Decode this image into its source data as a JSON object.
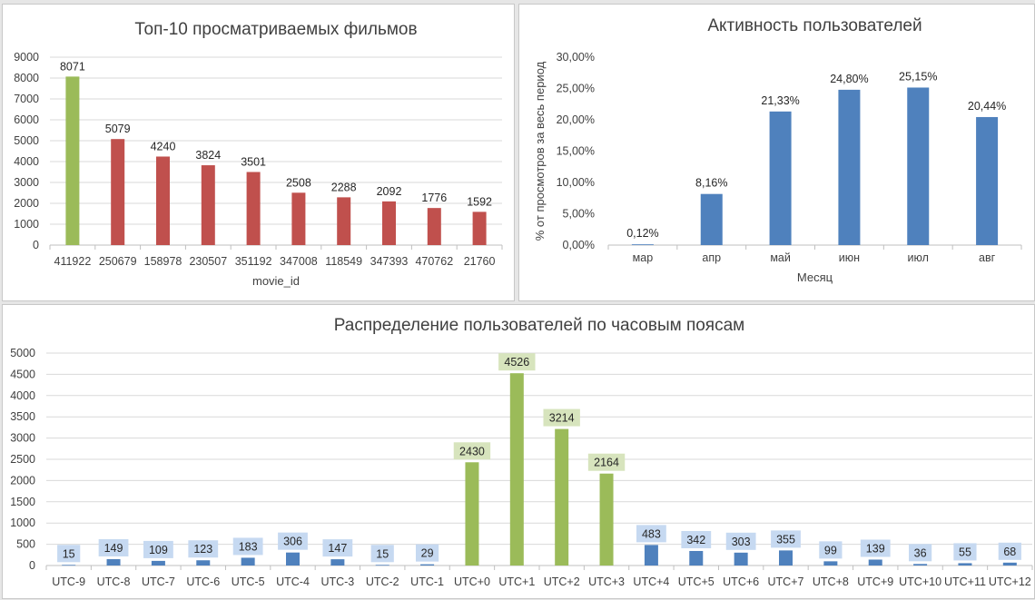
{
  "chart_data": [
    {
      "type": "bar",
      "title": "Топ-10 просматриваемых фильмов",
      "xlabel": "movie_id",
      "ylabel": "",
      "ylim": [
        0,
        9000
      ],
      "yticks": [
        "0",
        "1000",
        "2000",
        "3000",
        "4000",
        "5000",
        "6000",
        "7000",
        "8000",
        "9000"
      ],
      "categories": [
        "411922",
        "250679",
        "158978",
        "230507",
        "351192",
        "347008",
        "118549",
        "347393",
        "470762",
        "21760"
      ],
      "values": [
        8071,
        5079,
        4240,
        3824,
        3501,
        2508,
        2288,
        2092,
        1776,
        1592
      ],
      "data_labels": [
        "8071",
        "5079",
        "4240",
        "3824",
        "3501",
        "2508",
        "2288",
        "2092",
        "1776",
        "1592"
      ],
      "highlight_indices": [
        0
      ],
      "colors": {
        "default": "#c0504d",
        "highlight": "#9bbb59"
      },
      "grid": true,
      "legend": "none"
    },
    {
      "type": "bar",
      "title": "Активность пользователей",
      "xlabel": "Месяц",
      "ylabel": "%  от просмотров за весь период",
      "ylim": [
        0,
        30
      ],
      "yticks": [
        "0,00%",
        "5,00%",
        "10,00%",
        "15,00%",
        "20,00%",
        "25,00%",
        "30,00%"
      ],
      "categories": [
        "мар",
        "апр",
        "май",
        "июн",
        "июл",
        "авг"
      ],
      "values": [
        0.12,
        8.16,
        21.33,
        24.8,
        25.15,
        20.44
      ],
      "data_labels": [
        "0,12%",
        "8,16%",
        "21,33%",
        "24,80%",
        "25,15%",
        "20,44%"
      ],
      "highlight_indices": [],
      "colors": {
        "default": "#4f81bd",
        "highlight": "#4f81bd"
      },
      "grid": false,
      "legend": "none"
    },
    {
      "type": "bar",
      "title": "Распределение пользователей по часовым поясам",
      "xlabel": "",
      "ylabel": "",
      "ylim": [
        0,
        5000
      ],
      "yticks": [
        "0",
        "500",
        "1000",
        "1500",
        "2000",
        "2500",
        "3000",
        "3500",
        "4000",
        "4500",
        "5000"
      ],
      "categories": [
        "UTC-9",
        "UTC-8",
        "UTC-7",
        "UTC-6",
        "UTC-5",
        "UTC-4",
        "UTC-3",
        "UTC-2",
        "UTC-1",
        "UTC+0",
        "UTC+1",
        "UTC+2",
        "UTC+3",
        "UTC+4",
        "UTC+5",
        "UTC+6",
        "UTC+7",
        "UTC+8",
        "UTC+9",
        "UTC+10",
        "UTC+11",
        "UTC+12"
      ],
      "values": [
        15,
        149,
        109,
        123,
        183,
        306,
        147,
        15,
        29,
        2430,
        4526,
        3214,
        2164,
        483,
        342,
        303,
        355,
        99,
        139,
        36,
        55,
        68
      ],
      "data_labels": [
        "15",
        "149",
        "109",
        "123",
        "183",
        "306",
        "147",
        "15",
        "29",
        "2430",
        "4526",
        "3214",
        "2164",
        "483",
        "342",
        "303",
        "355",
        "99",
        "139",
        "36",
        "55",
        "68"
      ],
      "highlight_indices": [
        9,
        10,
        11,
        12
      ],
      "colors": {
        "default": "#4f81bd",
        "highlight": "#9bbb59",
        "label_bg_default": "#c6d9f1",
        "label_bg_highlight": "#d7e4bd"
      },
      "grid": true,
      "legend": "none"
    }
  ]
}
